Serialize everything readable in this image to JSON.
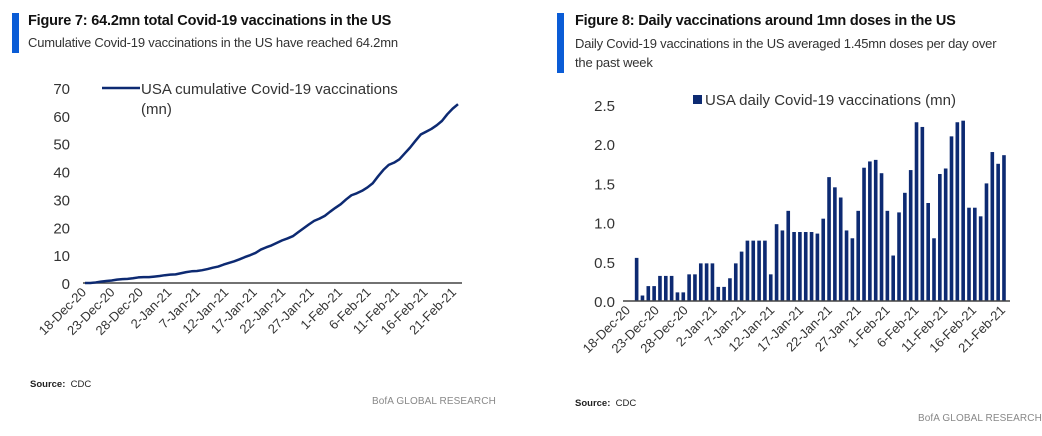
{
  "figure7": {
    "title": "Figure 7: 64.2mn total Covid-19 vaccinations in the US",
    "subtitle": "Cumulative Covid-19 vaccinations in the US have reached 64.2mn",
    "source_label": "Source:",
    "source_value": "CDC",
    "brand": "BofA GLOBAL RESEARCH"
  },
  "figure8": {
    "title": "Figure 8: Daily vaccinations around 1mn doses in the US",
    "subtitle_line1": "Daily Covid-19 vaccinations in the US averaged 1.45mn doses per day over",
    "subtitle_line2": "the past week",
    "source_label": "Source:",
    "source_value": "CDC",
    "brand": "BofA GLOBAL RESEARCH"
  },
  "colors": {
    "accent": "#0a5cd6",
    "series": "#0d2a72",
    "axis": "#333333"
  },
  "chart_data": [
    {
      "type": "line",
      "title": "Figure 7: 64.2mn total Covid-19 vaccinations in the US",
      "legend": {
        "label_line1": "USA cumulative Covid-19 vaccinations",
        "label_line2": "(mn)",
        "placement": "top"
      },
      "ylim": [
        0,
        70
      ],
      "yticks": [
        "0",
        "10",
        "20",
        "30",
        "40",
        "50",
        "60",
        "70"
      ],
      "xlabel": "",
      "ylabel": "",
      "x_tick_labels": [
        "18-Dec-20",
        "23-Dec-20",
        "28-Dec-20",
        "2-Jan-21",
        "7-Jan-21",
        "12-Jan-21",
        "17-Jan-21",
        "22-Jan-21",
        "27-Jan-21",
        "1-Feb-21",
        "6-Feb-21",
        "11-Feb-21",
        "16-Feb-21",
        "21-Feb-21"
      ],
      "grid": false,
      "series": [
        {
          "name": "USA cumulative Covid-19 vaccinations (mn)",
          "values": [
            0,
            0,
            0.2,
            0.5,
            0.7,
            0.9,
            1.2,
            1.4,
            1.5,
            1.7,
            2.0,
            2.1,
            2.1,
            2.3,
            2.5,
            2.8,
            3.0,
            3.1,
            3.5,
            3.9,
            4.2,
            4.3,
            4.6,
            5.0,
            5.5,
            5.9,
            6.6,
            7.2,
            7.8,
            8.5,
            9.3,
            10.0,
            10.8,
            12.0,
            12.8,
            13.5,
            14.4,
            15.3,
            16.0,
            16.8,
            18.2,
            19.6,
            21.0,
            22.3,
            23.1,
            24.1,
            25.6,
            27.0,
            28.3,
            30.0,
            31.5,
            32.2,
            33.1,
            34.3,
            35.8,
            38.3,
            40.6,
            42.4,
            43.2,
            44.4,
            46.5,
            48.6,
            51.0,
            53.3,
            54.3,
            55.3,
            56.6,
            58.2,
            60.6,
            62.6,
            64.2
          ]
        }
      ]
    },
    {
      "type": "bar",
      "title": "Figure 8: Daily vaccinations around 1mn doses in the US",
      "legend": {
        "label": "USA daily Covid-19 vaccinations (mn)",
        "placement": "top"
      },
      "ylim": [
        0,
        2.5
      ],
      "yticks": [
        "0.0",
        "0.5",
        "1.0",
        "1.5",
        "2.0",
        "2.5"
      ],
      "xlabel": "",
      "ylabel": "",
      "x_tick_labels": [
        "18-Dec-20",
        "23-Dec-20",
        "28-Dec-20",
        "2-Jan-21",
        "7-Jan-21",
        "12-Jan-21",
        "17-Jan-21",
        "22-Jan-21",
        "27-Jan-21",
        "1-Feb-21",
        "6-Feb-21",
        "11-Feb-21",
        "16-Feb-21",
        "21-Feb-21"
      ],
      "grid": false,
      "series": [
        {
          "name": "USA daily Covid-19 vaccinations (mn)",
          "values": [
            0,
            0.55,
            0.07,
            0.19,
            0.19,
            0.32,
            0.32,
            0.32,
            0.11,
            0.11,
            0.34,
            0.34,
            0.48,
            0.48,
            0.48,
            0.18,
            0.18,
            0.29,
            0.48,
            0.63,
            0.77,
            0.77,
            0.77,
            0.77,
            0.34,
            0.98,
            0.9,
            1.15,
            0.88,
            0.88,
            0.88,
            0.88,
            0.86,
            1.05,
            1.58,
            1.45,
            1.32,
            0.9,
            0.8,
            1.15,
            1.7,
            1.78,
            1.8,
            1.63,
            1.15,
            0.58,
            1.13,
            1.38,
            1.67,
            2.28,
            2.22,
            1.25,
            0.8,
            1.62,
            1.69,
            2.1,
            2.28,
            2.3,
            1.19,
            1.19,
            1.08,
            1.5,
            1.9,
            1.75,
            1.86
          ]
        }
      ]
    }
  ]
}
